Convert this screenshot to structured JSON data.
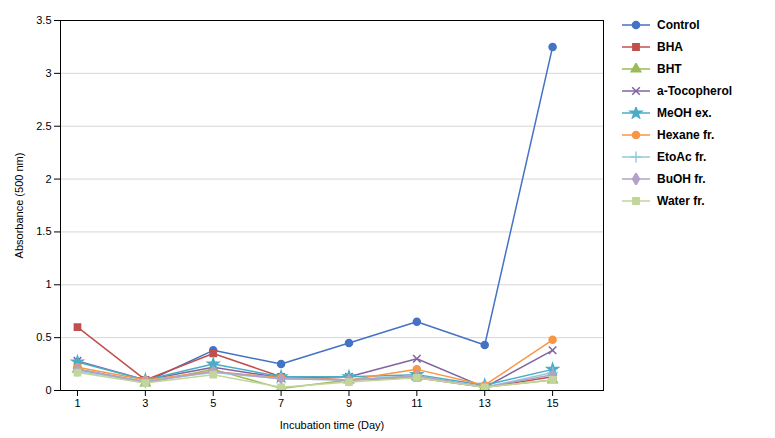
{
  "chart_data": {
    "type": "line",
    "xlabel": "Incubation time (Day)",
    "ylabel": "Absorbance (500 nm)",
    "x": [
      1,
      3,
      5,
      7,
      9,
      11,
      13,
      15
    ],
    "series": [
      {
        "name": "Control",
        "color": "#4472C4",
        "marker": "circle",
        "values": [
          0.2,
          0.08,
          0.38,
          0.25,
          0.45,
          0.65,
          0.43,
          3.25
        ]
      },
      {
        "name": "BHA",
        "color": "#C0504D",
        "marker": "square",
        "values": [
          0.6,
          0.1,
          0.35,
          0.13,
          0.1,
          0.12,
          0.03,
          0.13
        ]
      },
      {
        "name": "BHT",
        "color": "#9BBB59",
        "marker": "triangle",
        "values": [
          0.2,
          0.07,
          0.2,
          0.02,
          0.1,
          0.13,
          0.03,
          0.1
        ]
      },
      {
        "name": "a-Tocopherol",
        "color": "#8064A2",
        "marker": "x",
        "values": [
          0.28,
          0.1,
          0.22,
          0.12,
          0.13,
          0.3,
          0.03,
          0.38
        ]
      },
      {
        "name": "MeOH ex.",
        "color": "#4BACC6",
        "marker": "star",
        "values": [
          0.27,
          0.1,
          0.25,
          0.13,
          0.13,
          0.15,
          0.05,
          0.2
        ]
      },
      {
        "name": "Hexane fr.",
        "color": "#F79646",
        "marker": "circle",
        "values": [
          0.22,
          0.1,
          0.18,
          0.12,
          0.1,
          0.2,
          0.05,
          0.48
        ]
      },
      {
        "name": "EtoAc fr.",
        "color": "#92CDDC",
        "marker": "plus",
        "values": [
          0.18,
          0.09,
          0.17,
          0.11,
          0.1,
          0.14,
          0.03,
          0.17
        ]
      },
      {
        "name": "BuOH fr.",
        "color": "#B3A2C7",
        "marker": "diamond",
        "values": [
          0.2,
          0.08,
          0.18,
          0.11,
          0.1,
          0.14,
          0.03,
          0.15
        ]
      },
      {
        "name": "Water fr.",
        "color": "#C2D69B",
        "marker": "square",
        "values": [
          0.17,
          0.07,
          0.15,
          0.03,
          0.08,
          0.12,
          0.03,
          0.1
        ]
      }
    ],
    "xlim": [
      0.5,
      16.5
    ],
    "xticks": [
      1,
      3,
      5,
      7,
      9,
      11,
      13,
      15
    ],
    "ylim": [
      0,
      3.5
    ],
    "yticks": [
      0,
      0.5,
      1.0,
      1.5,
      2.0,
      2.5,
      3.0,
      3.5
    ],
    "grid": "y",
    "legend": "right"
  }
}
